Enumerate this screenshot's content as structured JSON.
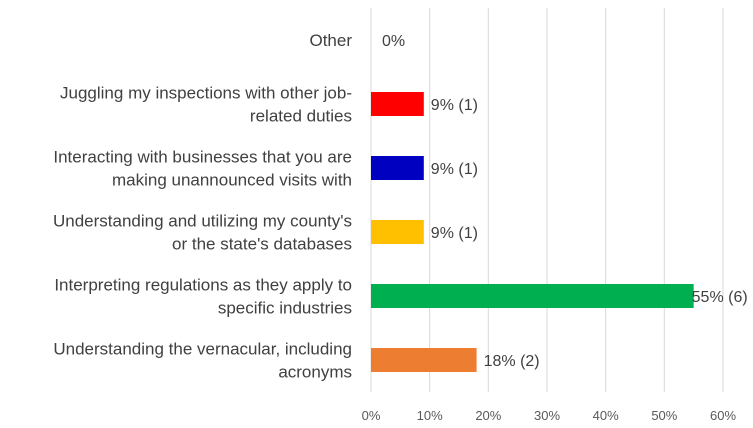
{
  "chart_data": {
    "type": "bar",
    "orientation": "horizontal",
    "categories": [
      [
        "Other"
      ],
      [
        "Juggling my inspections with other job-",
        "related duties"
      ],
      [
        "Interacting with businesses that you are",
        "making unannounced visits with"
      ],
      [
        "Understanding and utilizing my county's",
        "or the state's databases"
      ],
      [
        "Interpreting regulations as they apply to",
        "specific industries"
      ],
      [
        "Understanding the vernacular, including",
        "acronyms"
      ]
    ],
    "values": [
      0,
      9,
      9,
      9,
      55,
      18
    ],
    "data_labels": [
      "0%",
      "9% (1)",
      "9% (1)",
      "9% (1)",
      "55% (6)",
      "18% (2)"
    ],
    "colors": [
      "#ffffff",
      "#ff0000",
      "#0000c0",
      "#ffc000",
      "#00b050",
      "#ed7d31"
    ],
    "x_ticks": [
      "0%",
      "10%",
      "20%",
      "30%",
      "40%",
      "50%",
      "60%"
    ],
    "xlim": [
      0,
      60
    ],
    "grid": true,
    "legend": false
  }
}
